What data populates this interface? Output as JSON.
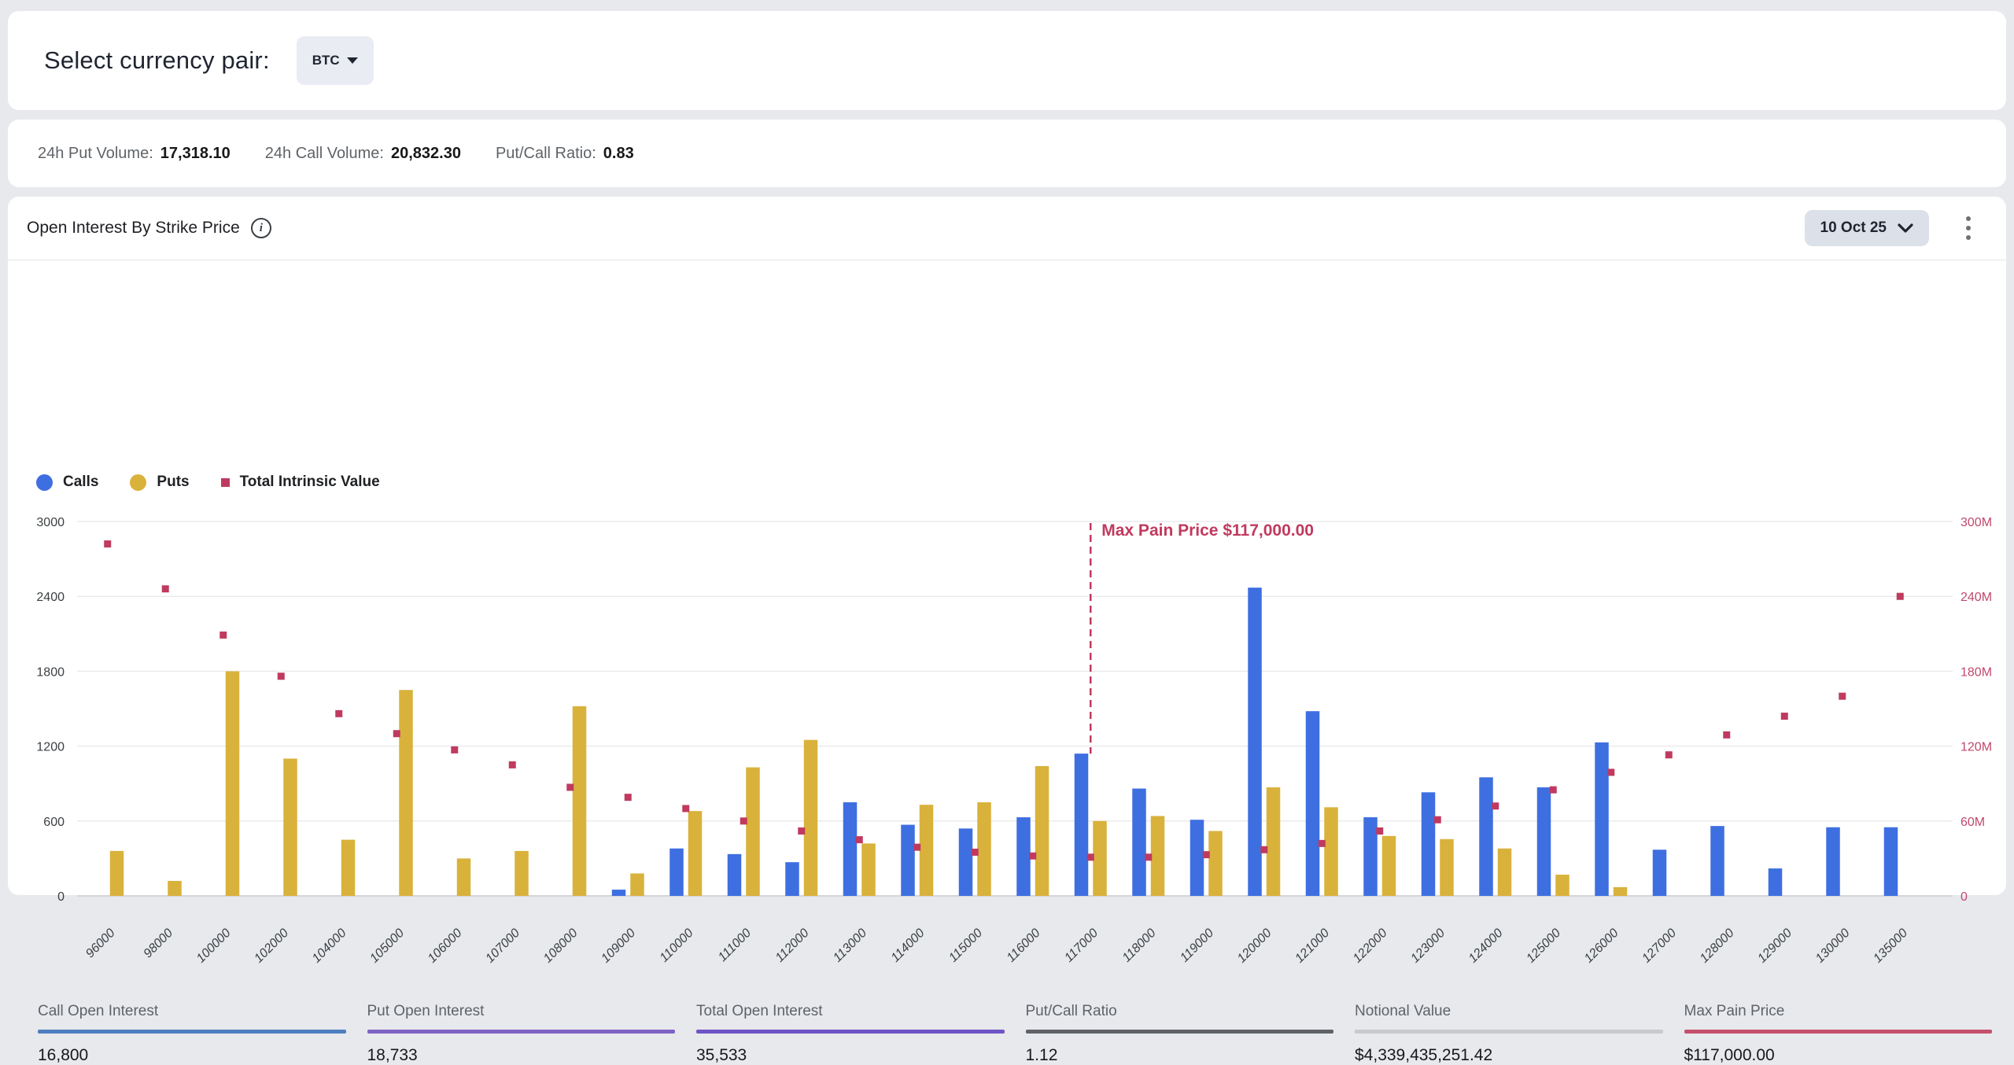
{
  "currency_bar": {
    "label": "Select currency pair:",
    "selected_pair": "BTC"
  },
  "volume_bar": {
    "stats": [
      {
        "label": "24h Put Volume:",
        "value": "17,318.10"
      },
      {
        "label": "24h Call Volume:",
        "value": "20,832.30"
      },
      {
        "label": "Put/Call Ratio:",
        "value": "0.83"
      }
    ]
  },
  "chart_card": {
    "title": "Open Interest By Strike Price",
    "info_icon": "i",
    "date_selector_label": "10 Oct 25",
    "menu_icon": "kebab-vertical",
    "legend": [
      {
        "label": "Calls",
        "color": "#3e6fe1",
        "shape": "circle"
      },
      {
        "label": "Puts",
        "color": "#d9b23c",
        "shape": "circle"
      },
      {
        "label": "Total Intrinsic Value",
        "color": "#c03a5f",
        "shape": "square"
      }
    ]
  },
  "chart_data": {
    "type": "bar",
    "title": "Open Interest By Strike Price",
    "grid": true,
    "legend_position": "top-left",
    "categories": [
      "96000",
      "98000",
      "100000",
      "102000",
      "104000",
      "105000",
      "106000",
      "107000",
      "108000",
      "109000",
      "110000",
      "111000",
      "112000",
      "113000",
      "114000",
      "115000",
      "116000",
      "117000",
      "118000",
      "119000",
      "120000",
      "121000",
      "122000",
      "123000",
      "124000",
      "125000",
      "126000",
      "127000",
      "128000",
      "129000",
      "130000",
      "135000"
    ],
    "series": [
      {
        "name": "Calls",
        "type": "bar",
        "axis": "left",
        "color": "#3e6fe1",
        "values": [
          0,
          0,
          0,
          0,
          0,
          0,
          0,
          0,
          0,
          50,
          380,
          335,
          270,
          750,
          570,
          540,
          630,
          1140,
          860,
          610,
          2470,
          1480,
          630,
          830,
          950,
          870,
          1230,
          370,
          560,
          220,
          550,
          550
        ]
      },
      {
        "name": "Puts",
        "type": "bar",
        "axis": "left",
        "color": "#d9b23c",
        "values": [
          360,
          120,
          1800,
          1100,
          450,
          1650,
          300,
          360,
          1520,
          180,
          680,
          1030,
          1250,
          420,
          730,
          750,
          1040,
          600,
          640,
          520,
          870,
          710,
          480,
          455,
          380,
          170,
          70,
          0,
          0,
          0,
          0,
          0
        ]
      },
      {
        "name": "Total Intrinsic Value",
        "type": "scatter",
        "axis": "right",
        "color": "#c03a5f",
        "unit": "millions USD",
        "values": [
          282,
          246,
          209,
          176,
          146,
          130,
          117,
          105,
          87,
          79,
          70,
          60,
          52,
          45,
          39,
          35,
          32,
          31,
          31,
          33,
          37,
          42,
          52,
          61,
          72,
          85,
          99,
          113,
          129,
          144,
          160,
          240
        ]
      }
    ],
    "left_axis": {
      "min": 0,
      "max": 3000,
      "ticks": [
        "0",
        "600",
        "1200",
        "1800",
        "2400",
        "3000"
      ],
      "color": "#3c4043"
    },
    "right_axis": {
      "min": 0,
      "max_millions": 300,
      "ticks": [
        "0",
        "60M",
        "120M",
        "180M",
        "240M",
        "300M"
      ],
      "color": "#c0486b"
    },
    "annotation": {
      "text": "Max Pain Price $117,000.00",
      "category": "117000",
      "color": "#c03a5f"
    }
  },
  "summary": {
    "items": [
      {
        "label": "Call Open Interest",
        "value": "16,800",
        "accent": "#4d7dbf"
      },
      {
        "label": "Put Open Interest",
        "value": "18,733",
        "accent": "#7e63c4"
      },
      {
        "label": "Total Open Interest",
        "value": "35,533",
        "accent": "#6f54c6"
      },
      {
        "label": "Put/Call Ratio",
        "value": "1.12",
        "accent": "#5f6368"
      },
      {
        "label": "Notional Value",
        "value": "$4,339,435,251.42",
        "accent": "#c9cacd"
      },
      {
        "label": "Max Pain Price",
        "value": "$117,000.00",
        "accent": "#c5506b"
      }
    ]
  }
}
